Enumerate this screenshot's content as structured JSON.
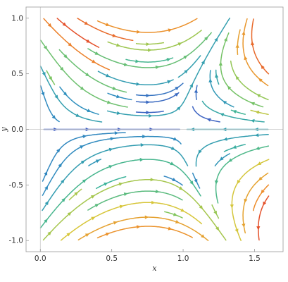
{
  "chart_data": {
    "type": "streamplot",
    "xlabel": "x",
    "ylabel": "y",
    "xlim": [
      -0.1,
      1.7
    ],
    "ylim": [
      -1.1,
      1.1
    ],
    "x_ticks": [
      0.0,
      0.5,
      1.0,
      1.5
    ],
    "y_ticks": [
      -1.0,
      -0.5,
      0.0,
      0.5,
      1.0
    ],
    "x_tick_labels": [
      "0.0",
      "0.5",
      "1.0",
      "1.5"
    ],
    "y_tick_labels": [
      "-1.0",
      "-0.5",
      "0.0",
      "0.5",
      "1.0"
    ],
    "data_region": {
      "x": [
        0.0,
        1.6
      ],
      "y": [
        -1.0,
        1.0
      ]
    },
    "grid": false,
    "legend": "none",
    "zero_lines": true,
    "color_scale": "speed: low = purple, high = orange/red",
    "colors": [
      "#4b2a91",
      "#3e5fc2",
      "#2f8fbf",
      "#3bb39a",
      "#83c65a",
      "#d8c63a",
      "#ee8a2a",
      "#e4502a"
    ]
  }
}
